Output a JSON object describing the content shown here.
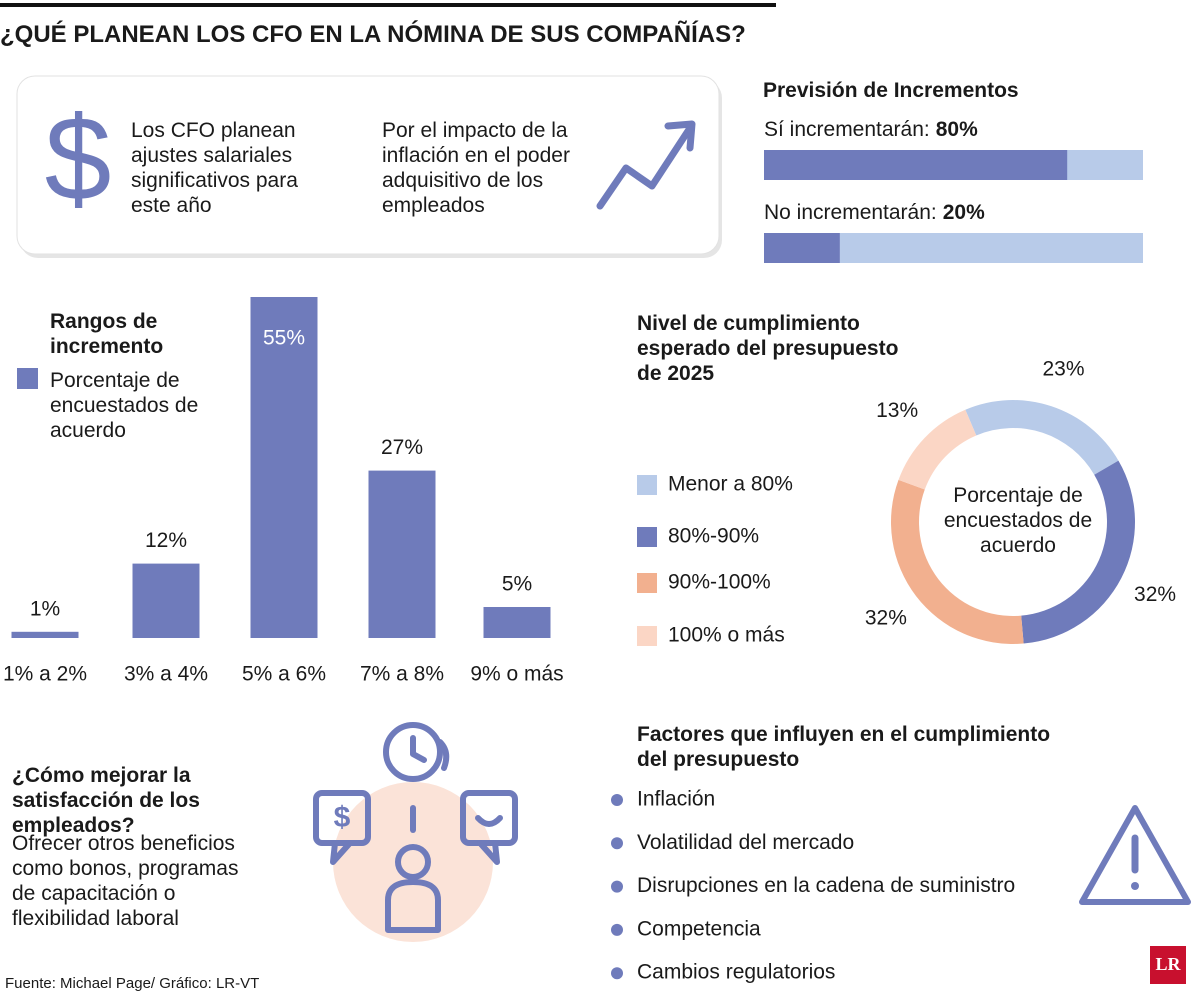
{
  "title": "¿QUÉ PLANEAN LOS CFO EN LA NÓMINA DE SUS COMPAÑÍAS?",
  "intro": [
    "Los CFO planean ajustes salariales significativos para este año",
    "Por el impacto de la inflación en el poder adquisitivo de los empleados"
  ],
  "chart_data": [
    {
      "type": "progress",
      "title": "Previsión de Incrementos",
      "categories": [
        "Sí incrementarán:",
        "No incrementarán:"
      ],
      "values": [
        80,
        20
      ],
      "value_labels": [
        "80%",
        "20%"
      ],
      "color": "#6f7bbb",
      "track_color": "#b8cbe9",
      "ylim": [
        0,
        100
      ]
    },
    {
      "type": "bar",
      "title": "Rangos de incremento",
      "legend": "Porcentaje de encuestados de acuerdo",
      "categories": [
        "1% a 2%",
        "3% a 4%",
        "5% a 6%",
        "7% a 8%",
        "9% o más"
      ],
      "values": [
        1,
        12,
        55,
        27,
        5
      ],
      "value_labels": [
        "1%",
        "12%",
        "55%",
        "27%",
        "5%"
      ],
      "color": "#6f7bbb"
    },
    {
      "type": "donut",
      "title": "Nivel de cumplimiento esperado del presupuesto de 2025",
      "center_label": "Porcentaje de encuestados de acuerdo",
      "categories": [
        "Menor a 80%",
        "80%-90%",
        "90%-100%",
        "100% o más"
      ],
      "values": [
        23,
        32,
        32,
        13
      ],
      "value_labels": [
        "23%",
        "32%",
        "32%",
        "13%"
      ],
      "colors": [
        "#b8cbe9",
        "#6f7bbb",
        "#f2b08f",
        "#fbd6c5"
      ]
    }
  ],
  "satisfaction": {
    "title": "¿Cómo mejorar la satisfacción de los empleados?",
    "text": "Ofrecer otros beneficios como bonos, programas de capacitación o flexibilidad laboral"
  },
  "factors": {
    "title": "Factores que influyen en el cumplimiento del presupuesto",
    "items": [
      "Inflación",
      "Volatilidad del mercado",
      "Disrupciones en la cadena de suministro",
      "Competencia",
      "Cambios regulatorios"
    ]
  },
  "source": "Fuente: Michael Page/ Gráfico: LR-VT",
  "logo": "LR"
}
